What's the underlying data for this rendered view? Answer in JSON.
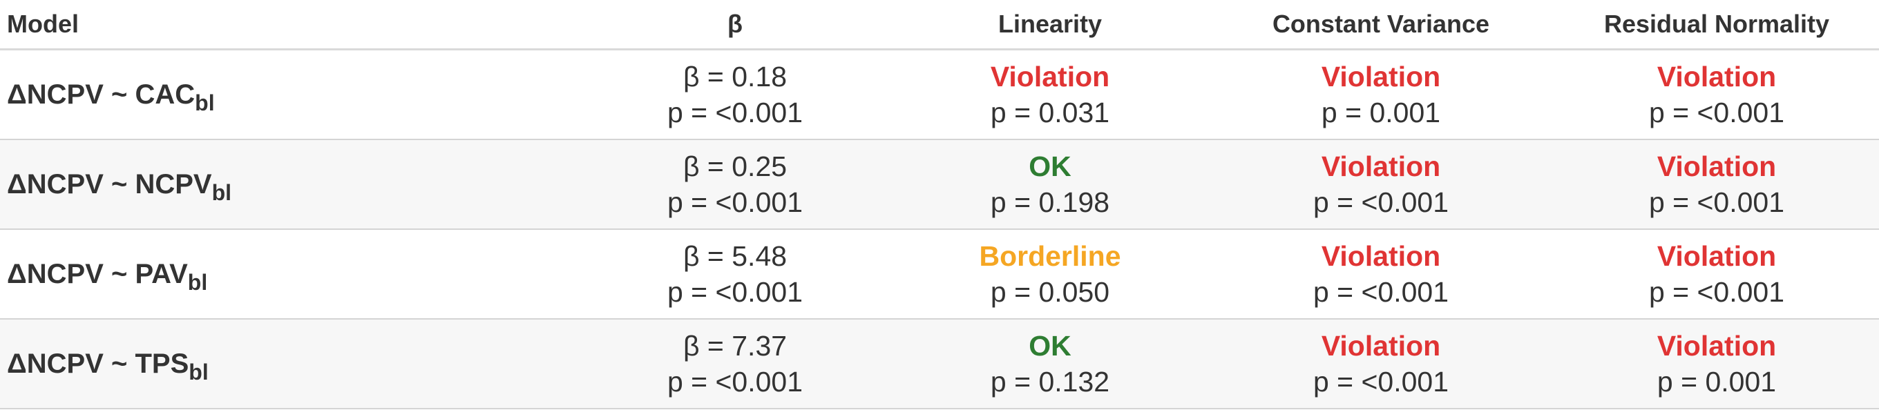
{
  "headers": {
    "model": "Model",
    "beta": "β",
    "linearity": "Linearity",
    "constant_variance": "Constant Variance",
    "residual_normality": "Residual Normality"
  },
  "status_colors": {
    "Violation": "#e03434",
    "OK": "#2e7d32",
    "Borderline": "#f5a623"
  },
  "rows": [
    {
      "model_main": "ΔNCPV ~ CAC",
      "model_sub": "bl",
      "beta": "β = 0.18",
      "beta_p": "p = <0.001",
      "linearity": {
        "status": "Violation",
        "p": "p = 0.031"
      },
      "constant_variance": {
        "status": "Violation",
        "p": "p = 0.001"
      },
      "residual_normality": {
        "status": "Violation",
        "p": "p = <0.001"
      }
    },
    {
      "model_main": "ΔNCPV ~ NCPV",
      "model_sub": "bl",
      "beta": "β = 0.25",
      "beta_p": "p = <0.001",
      "linearity": {
        "status": "OK",
        "p": "p = 0.198"
      },
      "constant_variance": {
        "status": "Violation",
        "p": "p = <0.001"
      },
      "residual_normality": {
        "status": "Violation",
        "p": "p = <0.001"
      }
    },
    {
      "model_main": "ΔNCPV ~ PAV",
      "model_sub": "bl",
      "beta": "β = 5.48",
      "beta_p": "p = <0.001",
      "linearity": {
        "status": "Borderline",
        "p": "p = 0.050"
      },
      "constant_variance": {
        "status": "Violation",
        "p": "p = <0.001"
      },
      "residual_normality": {
        "status": "Violation",
        "p": "p = <0.001"
      }
    },
    {
      "model_main": "ΔNCPV ~ TPS",
      "model_sub": "bl",
      "beta": "β = 7.37",
      "beta_p": "p = <0.001",
      "linearity": {
        "status": "OK",
        "p": "p = 0.132"
      },
      "constant_variance": {
        "status": "Violation",
        "p": "p = <0.001"
      },
      "residual_normality": {
        "status": "Violation",
        "p": "p = 0.001"
      }
    }
  ]
}
